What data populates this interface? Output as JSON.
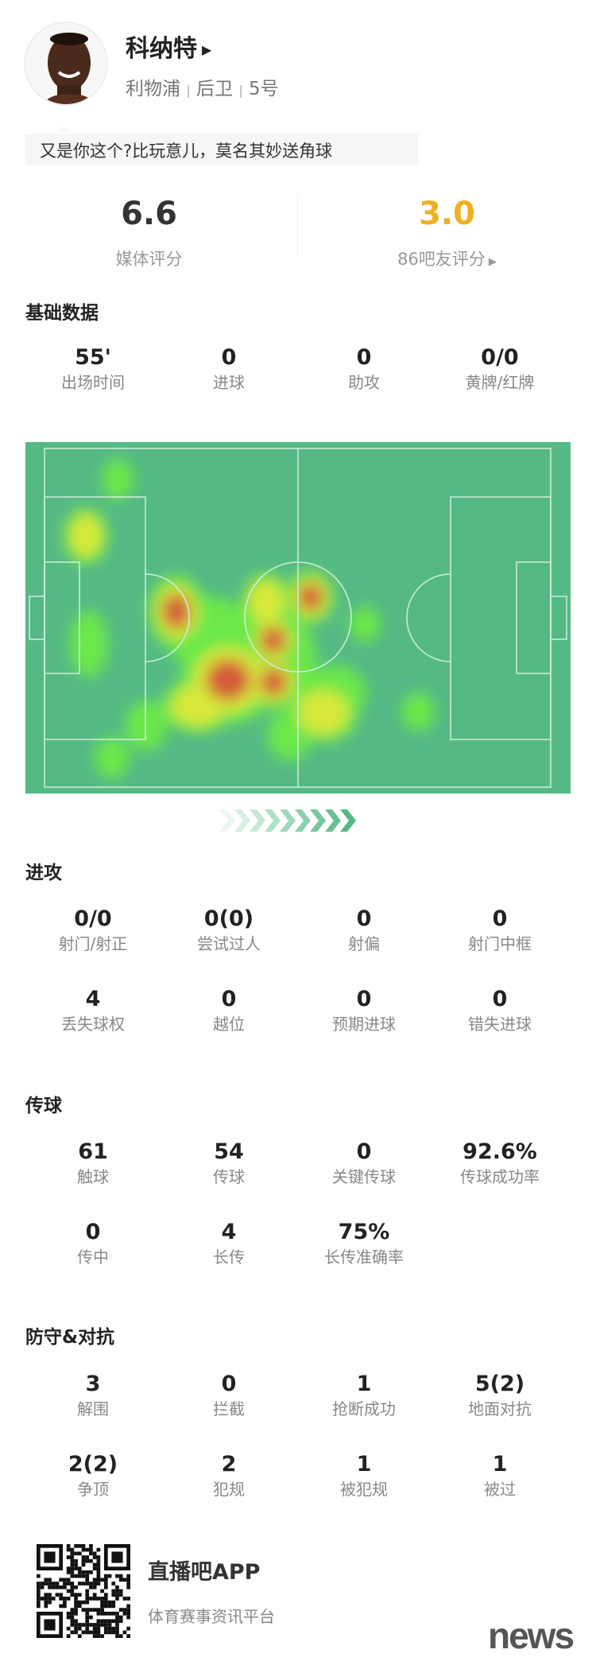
{
  "player": {
    "name": "科纳特",
    "club": "利物浦",
    "position": "后卫",
    "number": "5号",
    "sep": "|"
  },
  "comment": "又是你这个?比玩意儿，莫名其妙送角球",
  "ratings": {
    "media_value": "6.6",
    "media_label": "媒体评分",
    "fan_value": "3.0",
    "fan_label": "86吧友评分",
    "fan_color": "#f0b020"
  },
  "sections": {
    "basic": {
      "title": "基础数据",
      "items": [
        {
          "v": "55'",
          "l": "出场时间"
        },
        {
          "v": "0",
          "l": "进球"
        },
        {
          "v": "0",
          "l": "助攻"
        },
        {
          "v": "0/0",
          "l": "黄牌/红牌"
        }
      ]
    },
    "attack": {
      "title": "进攻",
      "items": [
        {
          "v": "0/0",
          "l": "射门/射正"
        },
        {
          "v": "0(0)",
          "l": "尝试过人"
        },
        {
          "v": "0",
          "l": "射偏"
        },
        {
          "v": "0",
          "l": "射门中框"
        },
        {
          "v": "4",
          "l": "丢失球权"
        },
        {
          "v": "0",
          "l": "越位"
        },
        {
          "v": "0",
          "l": "预期进球"
        },
        {
          "v": "0",
          "l": "错失进球"
        }
      ]
    },
    "passing": {
      "title": "传球",
      "items": [
        {
          "v": "61",
          "l": "触球"
        },
        {
          "v": "54",
          "l": "传球"
        },
        {
          "v": "0",
          "l": "关键传球"
        },
        {
          "v": "92.6%",
          "l": "传球成功率"
        },
        {
          "v": "0",
          "l": "传中"
        },
        {
          "v": "4",
          "l": "长传"
        },
        {
          "v": "75%",
          "l": "长传准确率"
        }
      ]
    },
    "defense": {
      "title": "防守&对抗",
      "items": [
        {
          "v": "3",
          "l": "解围"
        },
        {
          "v": "0",
          "l": "拦截"
        },
        {
          "v": "1",
          "l": "抢断成功"
        },
        {
          "v": "5(2)",
          "l": "地面对抗"
        },
        {
          "v": "2(2)",
          "l": "争顶"
        },
        {
          "v": "2",
          "l": "犯规"
        },
        {
          "v": "1",
          "l": "被犯规"
        },
        {
          "v": "1",
          "l": "被过"
        }
      ]
    }
  },
  "heatmap": {
    "pitch_color": "#55b985",
    "line_color": "#cfeedd"
  },
  "footer": {
    "app_name": "直播吧APP",
    "app_sub": "体育赛事资讯平台",
    "watermark": "news"
  }
}
